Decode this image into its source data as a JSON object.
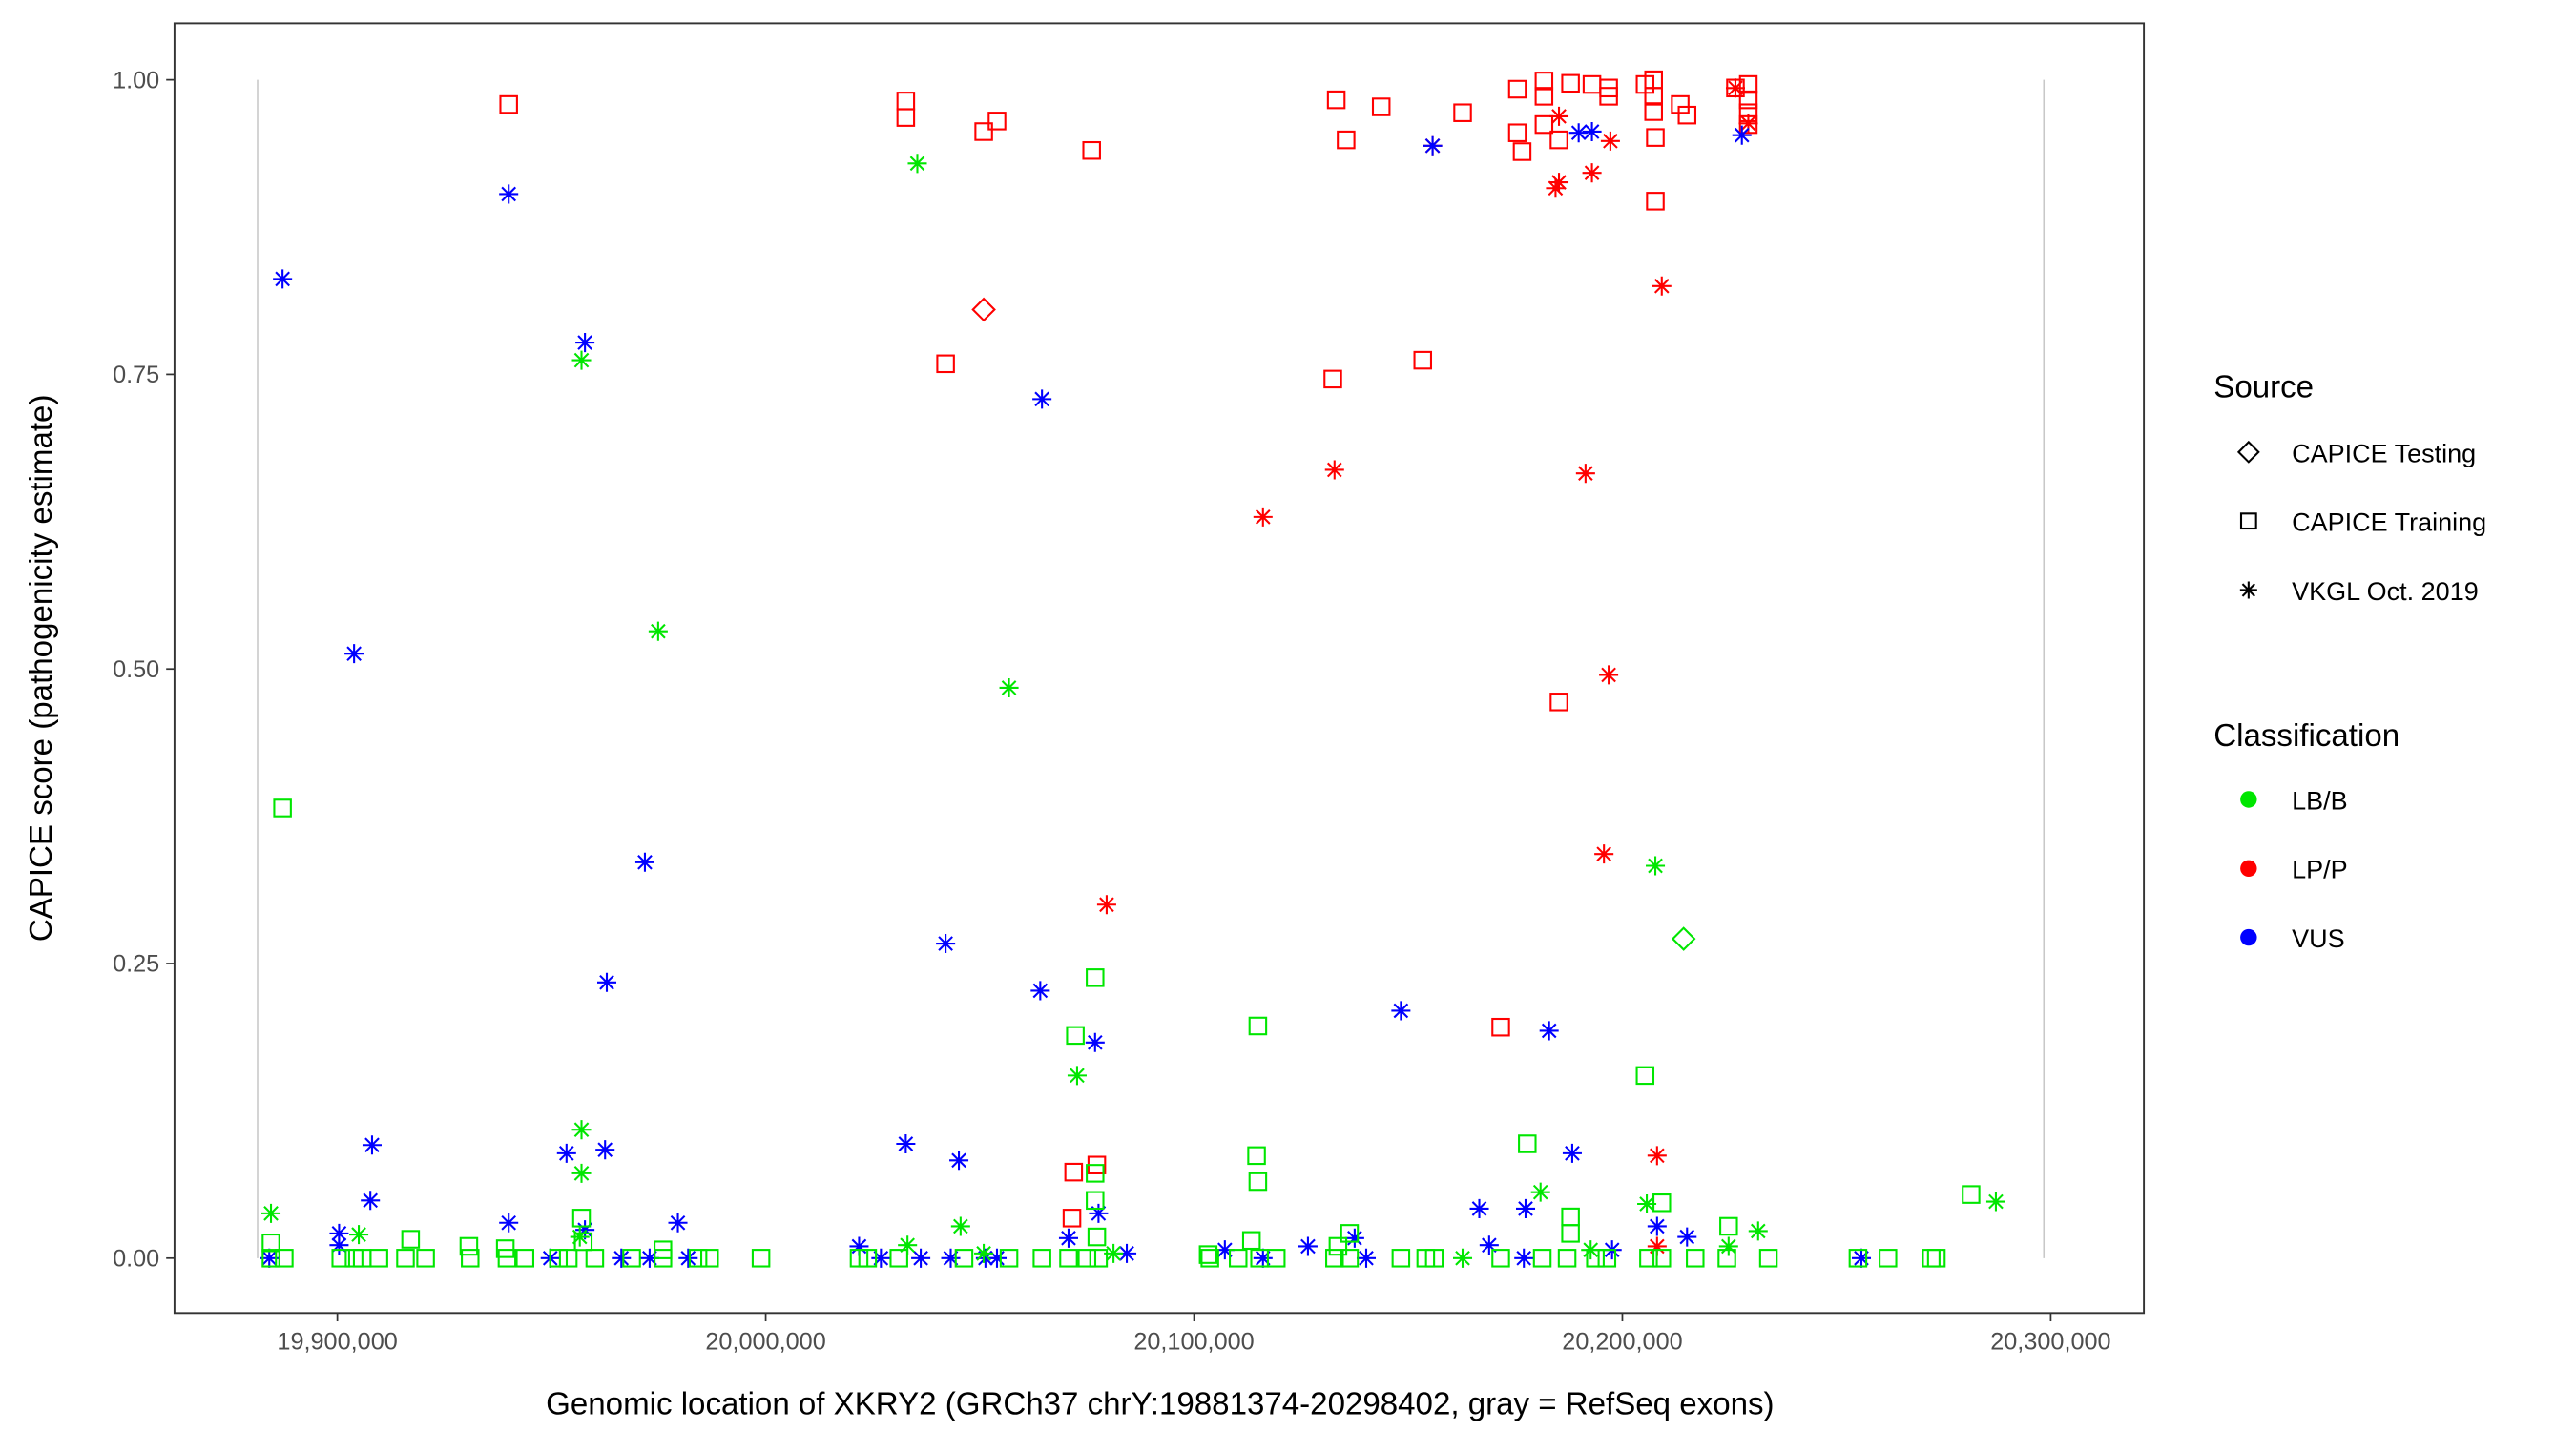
{
  "chart_data": {
    "type": "scatter",
    "title": "",
    "xlabel": "Genomic location of XKRY2 (GRCh37 chrY:19881374-20298402, gray = RefSeq exons)",
    "ylabel": "CAPICE score (pathogenicity estimate)",
    "xlim": [
      19862000,
      20317000
    ],
    "ylim": [
      -0.045,
      1.047
    ],
    "x_ticks": [
      19900000,
      20000000,
      20100000,
      20200000,
      20300000
    ],
    "x_tick_labels": [
      "19,900,000",
      "20,000,000",
      "20,100,000",
      "20,200,000",
      "20,300,000"
    ],
    "y_ticks": [
      0,
      0.25,
      0.5,
      0.75,
      1.0
    ],
    "y_tick_labels": [
      "0.00",
      "0.25",
      "0.50",
      "0.75",
      "1.00"
    ],
    "exon_lines": [
      19881374,
      20298402
    ],
    "grid": false,
    "legend_placement": "right",
    "legend": {
      "source_title": "Source",
      "sources": [
        {
          "key": "testing",
          "label": "CAPICE Testing",
          "shape": "diamond"
        },
        {
          "key": "training",
          "label": "CAPICE Training",
          "shape": "square"
        },
        {
          "key": "vkgl",
          "label": "VKGL Oct. 2019",
          "shape": "asterisk"
        }
      ],
      "class_title": "Classification",
      "classes": [
        {
          "key": "LB/B",
          "label": "LB/B",
          "color": "#00e600"
        },
        {
          "key": "LP/P",
          "label": "LP/P",
          "color": "#ff0000"
        },
        {
          "key": "VUS",
          "label": "VUS",
          "color": "#0000ff"
        }
      ]
    },
    "series": [
      {
        "source": "training",
        "class": "LP/P",
        "points": [
          [
            19940000,
            0.979
          ],
          [
            20032700,
            0.982
          ],
          [
            20032700,
            0.968
          ],
          [
            20050900,
            0.956
          ],
          [
            20054000,
            0.965
          ],
          [
            20076100,
            0.94
          ],
          [
            20042000,
            0.759
          ],
          [
            20133200,
            0.983
          ],
          [
            20135500,
            0.949
          ],
          [
            20143700,
            0.977
          ],
          [
            20132400,
            0.746
          ],
          [
            20153400,
            0.762
          ],
          [
            20162700,
            0.972
          ],
          [
            20175500,
            0.992
          ],
          [
            20175500,
            0.955
          ],
          [
            20176600,
            0.939
          ],
          [
            20181700,
            0.999
          ],
          [
            20181700,
            0.986
          ],
          [
            20181700,
            0.962
          ],
          [
            20185200,
            0.949
          ],
          [
            20187900,
            0.997
          ],
          [
            20192900,
            0.996
          ],
          [
            20196800,
            0.993
          ],
          [
            20196800,
            0.986
          ],
          [
            20205300,
            0.996
          ],
          [
            20207300,
            1.0
          ],
          [
            20207300,
            0.986
          ],
          [
            20207300,
            0.973
          ],
          [
            20207700,
            0.951
          ],
          [
            20207700,
            0.897
          ],
          [
            20213500,
            0.979
          ],
          [
            20215100,
            0.97
          ],
          [
            20226400,
            0.993
          ],
          [
            20229400,
            0.996
          ],
          [
            20229400,
            0.983
          ],
          [
            20229400,
            0.972
          ],
          [
            20229400,
            0.962
          ],
          [
            20185200,
            0.472
          ],
          [
            20171600,
            0.196
          ],
          [
            20071900,
            0.073
          ],
          [
            20077300,
            0.079
          ],
          [
            20071500,
            0.034
          ]
        ]
      },
      {
        "source": "vkgl",
        "class": "LP/P",
        "points": [
          [
            20155700,
            0.944
          ],
          [
            20184400,
            0.908
          ],
          [
            20185200,
            0.913
          ],
          [
            20192900,
            0.921
          ],
          [
            20197200,
            0.948
          ],
          [
            20209200,
            0.825
          ],
          [
            20229400,
            0.963
          ],
          [
            20185200,
            0.969
          ],
          [
            20132800,
            0.669
          ],
          [
            20116100,
            0.629
          ],
          [
            20191400,
            0.666
          ],
          [
            20196800,
            0.495
          ],
          [
            20195700,
            0.343
          ],
          [
            20079600,
            0.3
          ],
          [
            20208100,
            0.087
          ],
          [
            20208100,
            0.01
          ],
          [
            20226400,
            0.993
          ]
        ]
      },
      {
        "source": "testing",
        "class": "LP/P",
        "points": [
          [
            20050900,
            0.805
          ]
        ]
      },
      {
        "source": "testing",
        "class": "LB/B",
        "points": [
          [
            20214300,
            0.271
          ]
        ]
      },
      {
        "source": "vkgl",
        "class": "VUS",
        "points": [
          [
            19887200,
            0.831
          ],
          [
            19940000,
            0.903
          ],
          [
            19957800,
            0.777
          ],
          [
            19903900,
            0.513
          ],
          [
            19971800,
            0.336
          ],
          [
            19962900,
            0.234
          ],
          [
            19908100,
            0.096
          ],
          [
            19907700,
            0.049
          ],
          [
            19900400,
            0.021
          ],
          [
            19900400,
            0.011
          ],
          [
            19884100,
            0.0
          ],
          [
            19940000,
            0.03
          ],
          [
            19953500,
            0.089
          ],
          [
            19962500,
            0.092
          ],
          [
            19957800,
            0.024
          ],
          [
            19979500,
            0.03
          ],
          [
            19949700,
            0.0
          ],
          [
            19966300,
            0.0
          ],
          [
            19972900,
            0.0
          ],
          [
            19981900,
            0.0
          ],
          [
            20064500,
            0.729
          ],
          [
            20042000,
            0.267
          ],
          [
            20064100,
            0.227
          ],
          [
            20076900,
            0.183
          ],
          [
            20032700,
            0.097
          ],
          [
            20045100,
            0.083
          ],
          [
            20021800,
            0.01
          ],
          [
            20026900,
            0.0
          ],
          [
            20036200,
            0.0
          ],
          [
            20043200,
            0.0
          ],
          [
            20051300,
            0.0
          ],
          [
            20054000,
            0.0
          ],
          [
            20070700,
            0.017
          ],
          [
            20077700,
            0.038
          ],
          [
            20084300,
            0.004
          ],
          [
            20155700,
            0.944
          ],
          [
            20189800,
            0.955
          ],
          [
            20192900,
            0.956
          ],
          [
            20227900,
            0.953
          ],
          [
            20148300,
            0.21
          ],
          [
            20182900,
            0.193
          ],
          [
            20188300,
            0.089
          ],
          [
            20166600,
            0.042
          ],
          [
            20177400,
            0.042
          ],
          [
            20168900,
            0.011
          ],
          [
            20107200,
            0.007
          ],
          [
            20116100,
            0.0
          ],
          [
            20126600,
            0.01
          ],
          [
            20137500,
            0.017
          ],
          [
            20140200,
            0.0
          ],
          [
            20177000,
            0.0
          ],
          [
            20197600,
            0.007
          ],
          [
            20208100,
            0.027
          ],
          [
            20215100,
            0.018
          ],
          [
            20255800,
            0.0
          ]
        ]
      },
      {
        "source": "vkgl",
        "class": "LB/B",
        "points": [
          [
            20035400,
            0.929
          ],
          [
            19957000,
            0.762
          ],
          [
            19974900,
            0.532
          ],
          [
            20056800,
            0.484
          ],
          [
            20072700,
            0.155
          ],
          [
            20207700,
            0.333
          ],
          [
            19884500,
            0.038
          ],
          [
            19905000,
            0.02
          ],
          [
            19957000,
            0.109
          ],
          [
            19957000,
            0.072
          ],
          [
            19956600,
            0.018
          ],
          [
            20045500,
            0.027
          ],
          [
            20033100,
            0.011
          ],
          [
            20180900,
            0.056
          ],
          [
            20205700,
            0.046
          ],
          [
            20231700,
            0.023
          ],
          [
            20287200,
            0.048
          ],
          [
            20224800,
            0.01
          ],
          [
            20081200,
            0.004
          ],
          [
            20050900,
            0.004
          ],
          [
            20162700,
            0.0
          ],
          [
            20192600,
            0.007
          ]
        ]
      },
      {
        "source": "training",
        "class": "LB/B",
        "points": [
          [
            19887200,
            0.382
          ],
          [
            20076900,
            0.238
          ],
          [
            20114900,
            0.197
          ],
          [
            20072300,
            0.189
          ],
          [
            20205300,
            0.155
          ],
          [
            20177800,
            0.097
          ],
          [
            20114600,
            0.087
          ],
          [
            20114900,
            0.065
          ],
          [
            20281400,
            0.054
          ],
          [
            20076900,
            0.072
          ],
          [
            20076900,
            0.049
          ],
          [
            20077300,
            0.018
          ],
          [
            19957000,
            0.034
          ],
          [
            19957400,
            0.014
          ],
          [
            20187900,
            0.035
          ],
          [
            20187900,
            0.021
          ],
          [
            20224800,
            0.027
          ],
          [
            20136300,
            0.021
          ],
          [
            20209200,
            0.047
          ],
          [
            19884500,
            0.013
          ],
          [
            19917100,
            0.016
          ],
          [
            19930700,
            0.01
          ],
          [
            19939200,
            0.008
          ],
          [
            19976000,
            0.007
          ],
          [
            20103300,
            0.003
          ],
          [
            20113400,
            0.015
          ],
          [
            20133600,
            0.01
          ],
          [
            19884500,
            0.0
          ],
          [
            19887600,
            0.0
          ],
          [
            19900800,
            0.0
          ],
          [
            19903900,
            0.0
          ],
          [
            19905800,
            0.0
          ],
          [
            19909700,
            0.0
          ],
          [
            19915900,
            0.0
          ],
          [
            19920600,
            0.0
          ],
          [
            19931000,
            0.0
          ],
          [
            19939600,
            0.0
          ],
          [
            19943800,
            0.0
          ],
          [
            19951600,
            0.0
          ],
          [
            19953900,
            0.0
          ],
          [
            19960100,
            0.0
          ],
          [
            19968700,
            0.0
          ],
          [
            19976000,
            0.0
          ],
          [
            19984200,
            0.0
          ],
          [
            19986900,
            0.0
          ],
          [
            19998900,
            0.0
          ],
          [
            20021800,
            0.0
          ],
          [
            20023800,
            0.0
          ],
          [
            20031100,
            0.0
          ],
          [
            20046300,
            0.0
          ],
          [
            20056800,
            0.0
          ],
          [
            20064500,
            0.0
          ],
          [
            20070700,
            0.0
          ],
          [
            20075000,
            0.0
          ],
          [
            20077700,
            0.0
          ],
          [
            20103700,
            0.0
          ],
          [
            20110300,
            0.0
          ],
          [
            20115300,
            0.0
          ],
          [
            20119200,
            0.0
          ],
          [
            20132800,
            0.0
          ],
          [
            20136300,
            0.0
          ],
          [
            20148300,
            0.0
          ],
          [
            20154100,
            0.0
          ],
          [
            20156100,
            0.0
          ],
          [
            20171600,
            0.0
          ],
          [
            20181300,
            0.0
          ],
          [
            20187100,
            0.0
          ],
          [
            20193700,
            0.0
          ],
          [
            20196400,
            0.0
          ],
          [
            20206100,
            0.0
          ],
          [
            20209200,
            0.0
          ],
          [
            20217000,
            0.0
          ],
          [
            20224400,
            0.0
          ],
          [
            20234100,
            0.0
          ],
          [
            20255000,
            0.0
          ],
          [
            20262000,
            0.0
          ],
          [
            20272100,
            0.0
          ],
          [
            20273300,
            0.0
          ]
        ]
      }
    ]
  }
}
